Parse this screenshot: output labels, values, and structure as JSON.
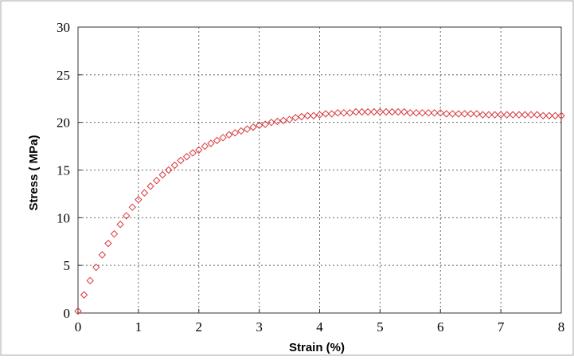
{
  "chart_data": {
    "type": "scatter",
    "xlabel": "Strain  (%)",
    "ylabel": "Stress ( MPa)",
    "xlim": [
      0,
      8
    ],
    "ylim": [
      0,
      30
    ],
    "x_ticks": [
      "0",
      "1",
      "2",
      "3",
      "4",
      "5",
      "6",
      "7",
      "8"
    ],
    "y_ticks": [
      "0",
      "5",
      "10",
      "15",
      "20",
      "25",
      "30"
    ],
    "grid": true,
    "marker": "diamond",
    "series": [
      {
        "x": [
          0,
          0.1,
          0.2,
          0.3,
          0.4,
          0.5,
          0.6,
          0.7,
          0.8,
          0.9,
          1.0,
          1.1,
          1.2,
          1.3,
          1.4,
          1.5,
          1.6,
          1.7,
          1.8,
          1.9,
          2.0,
          2.1,
          2.2,
          2.3,
          2.4,
          2.5,
          2.6,
          2.7,
          2.8,
          2.9,
          3.0,
          3.1,
          3.2,
          3.3,
          3.4,
          3.5,
          3.6,
          3.7,
          3.8,
          3.9,
          4.0,
          4.1,
          4.2,
          4.3,
          4.4,
          4.5,
          4.6,
          4.7,
          4.8,
          4.9,
          5.0,
          5.1,
          5.2,
          5.3,
          5.4,
          5.5,
          5.6,
          5.7,
          5.8,
          5.9,
          6.0,
          6.1,
          6.2,
          6.3,
          6.4,
          6.5,
          6.6,
          6.7,
          6.8,
          6.9,
          7.0,
          7.1,
          7.2,
          7.3,
          7.4,
          7.5,
          7.6,
          7.7,
          7.8,
          7.9,
          8.0
        ],
        "y": [
          0.2,
          1.9,
          3.4,
          4.8,
          6.1,
          7.3,
          8.3,
          9.3,
          10.2,
          11.1,
          11.9,
          12.6,
          13.3,
          13.9,
          14.5,
          15.0,
          15.5,
          16.0,
          16.4,
          16.8,
          17.1,
          17.5,
          17.8,
          18.1,
          18.4,
          18.7,
          18.9,
          19.1,
          19.3,
          19.5,
          19.7,
          19.8,
          20.0,
          20.1,
          20.2,
          20.3,
          20.5,
          20.6,
          20.7,
          20.7,
          20.8,
          20.9,
          20.9,
          21.0,
          21.0,
          21.0,
          21.1,
          21.1,
          21.1,
          21.1,
          21.1,
          21.1,
          21.1,
          21.1,
          21.1,
          21.0,
          21.0,
          21.0,
          21.0,
          21.0,
          21.0,
          20.9,
          20.9,
          20.9,
          20.9,
          20.9,
          20.9,
          20.8,
          20.8,
          20.8,
          20.8,
          20.8,
          20.8,
          20.8,
          20.8,
          20.8,
          20.8,
          20.7,
          20.7,
          20.7,
          20.7
        ]
      }
    ],
    "colors": {
      "marker": "#d9383a",
      "grid": "#666666",
      "axis": "#333333",
      "frame": "#aaaaaa"
    }
  }
}
